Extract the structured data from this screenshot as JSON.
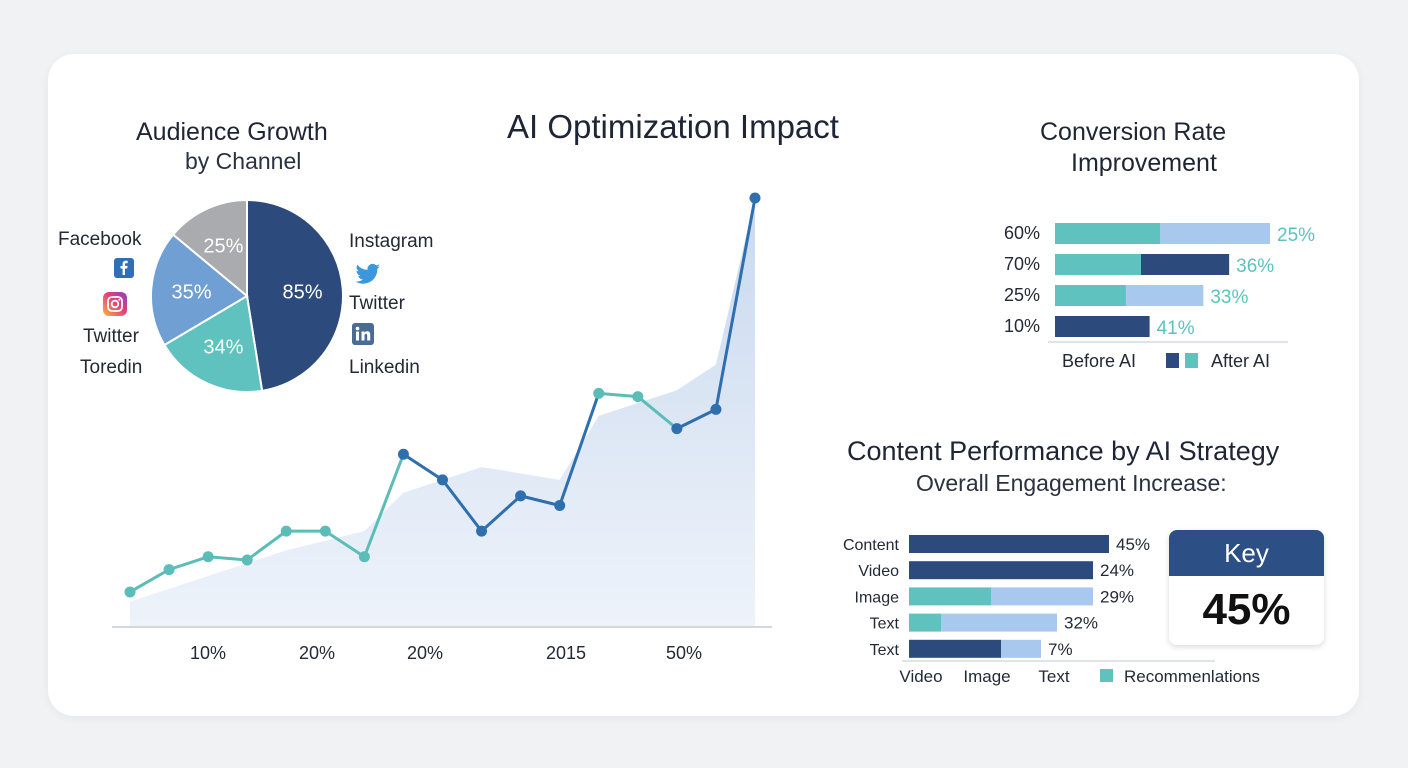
{
  "titles": {
    "main": "AI Optimization Impact",
    "audience_line1": "Audience Growth",
    "audience_line2": "by Channel",
    "conversion_line1": "Conversion Rate",
    "conversion_line2": "Improvement",
    "content_title": "Content Performance by AI Strategy",
    "content_subtitle": "Overall Engagement  Increase:"
  },
  "pie_labels": {
    "facebook": "Facebook",
    "twitter_left": "Twitter",
    "toredin": "Toredin",
    "instagram": "Instagram",
    "twitter_right": "Twitter",
    "linkedin": "Linkedin"
  },
  "icons": [
    "facebook-icon",
    "instagram-icon",
    "twitter-icon",
    "linkedin-icon"
  ],
  "key": {
    "title": "Key",
    "value": "45%"
  },
  "chart_data": [
    {
      "type": "pie",
      "title": "Audience Growth by Channel",
      "slices": [
        {
          "label": "85%",
          "value": 85,
          "color": "#2c4a7c"
        },
        {
          "label": "34%",
          "value": 34,
          "color": "#5fc2be"
        },
        {
          "label": "35%",
          "value": 35,
          "color": "#6f9fd3"
        },
        {
          "label": "25%",
          "value": 25,
          "color": "#a9abaf"
        }
      ]
    },
    {
      "type": "line",
      "title": "AI Optimization Impact",
      "x_tick_labels": [
        "10%",
        "20%",
        "20%",
        "2015",
        "50%"
      ],
      "points": [
        {
          "x": 0,
          "y": 5
        },
        {
          "x": 1,
          "y": 12
        },
        {
          "x": 2,
          "y": 16
        },
        {
          "x": 3,
          "y": 15
        },
        {
          "x": 4,
          "y": 24
        },
        {
          "x": 5,
          "y": 24
        },
        {
          "x": 6,
          "y": 16
        },
        {
          "x": 7,
          "y": 48
        },
        {
          "x": 8,
          "y": 40
        },
        {
          "x": 9,
          "y": 24
        },
        {
          "x": 10,
          "y": 35
        },
        {
          "x": 11,
          "y": 32
        },
        {
          "x": 12,
          "y": 67
        },
        {
          "x": 13,
          "y": 66
        },
        {
          "x": 14,
          "y": 56
        },
        {
          "x": 15,
          "y": 62
        },
        {
          "x": 16,
          "y": 128
        }
      ],
      "area": [
        {
          "x": 0,
          "y": 2
        },
        {
          "x": 2,
          "y": 10
        },
        {
          "x": 4,
          "y": 18
        },
        {
          "x": 6,
          "y": 24
        },
        {
          "x": 7,
          "y": 36
        },
        {
          "x": 8,
          "y": 40
        },
        {
          "x": 9,
          "y": 44
        },
        {
          "x": 10,
          "y": 42
        },
        {
          "x": 11,
          "y": 40
        },
        {
          "x": 12,
          "y": 60
        },
        {
          "x": 13,
          "y": 64
        },
        {
          "x": 14,
          "y": 68
        },
        {
          "x": 15,
          "y": 76
        },
        {
          "x": 16,
          "y": 128
        }
      ],
      "colors": {
        "teal": "#5bbdb8",
        "blue": "#2f6fae",
        "area": "#dbe6f4"
      }
    },
    {
      "type": "bar",
      "title": "Conversion Rate Improvement",
      "rows": [
        {
          "label": "60%",
          "segments": [
            {
              "value": 49,
              "color": "#5fc2be"
            },
            {
              "value": 51,
              "color": "#a9c8ee"
            }
          ],
          "value_label": "25%"
        },
        {
          "label": "70%",
          "segments": [
            {
              "value": 40,
              "color": "#5fc2be"
            },
            {
              "value": 41,
              "color": "#2c4a7c"
            }
          ],
          "value_label": "36%"
        },
        {
          "label": "25%",
          "segments": [
            {
              "value": 33,
              "color": "#5fc2be"
            },
            {
              "value": 36,
              "color": "#a9c8ee"
            }
          ],
          "value_label": "33%"
        },
        {
          "label": "10%",
          "segments": [
            {
              "value": 44,
              "color": "#2c4a7c"
            }
          ],
          "value_label": "41%"
        }
      ],
      "legend": [
        {
          "label": "Before AI",
          "color": "#2c4a7c"
        },
        {
          "label": "After AI",
          "color": "#5fc2be"
        }
      ]
    },
    {
      "type": "bar",
      "title": "Content Performance by AI Strategy",
      "rows": [
        {
          "label": "Content",
          "segments": [
            {
              "value": 100,
              "color": "#2c4a7c"
            }
          ],
          "value_label": "45%"
        },
        {
          "label": "Video",
          "segments": [
            {
              "value": 92,
              "color": "#2c4a7c"
            }
          ],
          "value_label": "24%"
        },
        {
          "label": "Image",
          "segments": [
            {
              "value": 41,
              "color": "#5fc2be"
            },
            {
              "value": 51,
              "color": "#a9c8ee"
            }
          ],
          "value_label": "29%"
        },
        {
          "label": "Text",
          "segments": [
            {
              "value": 16,
              "color": "#5fc2be"
            },
            {
              "value": 58,
              "color": "#a9c8ee"
            }
          ],
          "value_label": "32%"
        },
        {
          "label": "Text",
          "segments": [
            {
              "value": 46,
              "color": "#2c4a7c"
            },
            {
              "value": 20,
              "color": "#a9c8ee"
            }
          ],
          "value_label": "7%"
        }
      ],
      "x_labels": [
        "Video",
        "Image",
        "Text"
      ],
      "legend": [
        {
          "label": "Recommenlations",
          "color": "#5fc2be"
        }
      ]
    }
  ]
}
